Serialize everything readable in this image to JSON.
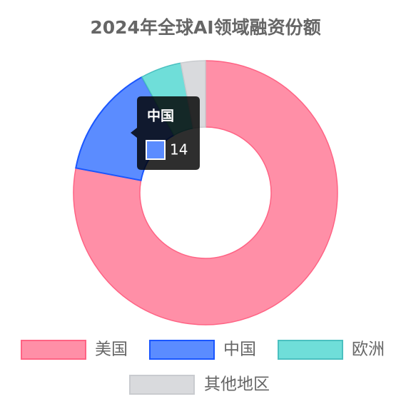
{
  "chart_data": {
    "type": "doughnut",
    "title": "2024年全球AI领域融资份额",
    "categories": [
      "美国",
      "中国",
      "欧洲",
      "其他地区"
    ],
    "values": [
      78,
      14,
      5,
      3
    ],
    "colors": [
      "#ff8fa7",
      "#5b8cff",
      "#6fded9",
      "#d9dadd"
    ],
    "border_colors": [
      "#ff6384",
      "#1a56ff",
      "#4bc0c0",
      "#c9cbcf"
    ],
    "legend": "bottom"
  }
}
